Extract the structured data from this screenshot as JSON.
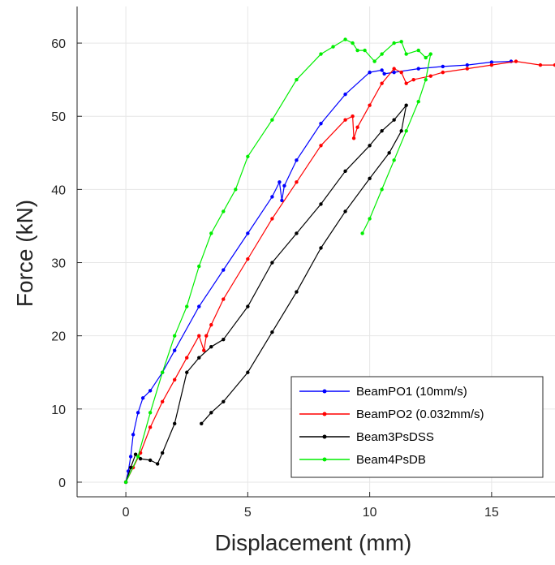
{
  "chart_data": {
    "type": "line",
    "title": "",
    "xlabel": "Displacement (mm)",
    "ylabel": "Force (kN)",
    "xlim": [
      -2,
      17.6
    ],
    "ylim": [
      -2,
      65
    ],
    "xticks": [
      0,
      5,
      10,
      15
    ],
    "yticks": [
      0,
      10,
      20,
      30,
      40,
      50,
      60
    ],
    "grid": true,
    "legend_position": "bottom-right",
    "series": [
      {
        "name": "BeamPO1 (10mm/s)",
        "color": "#0000ff",
        "x": [
          0,
          0.1,
          0.2,
          0.3,
          0.5,
          0.7,
          1.0,
          1.5,
          2.0,
          3.0,
          4.0,
          5.0,
          6.0,
          6.3,
          6.4,
          6.5,
          7.0,
          8.0,
          9.0,
          10.0,
          10.5,
          10.6,
          11.0,
          12.0,
          13.0,
          14.0,
          15.0,
          15.8
        ],
        "y": [
          0,
          1.5,
          3.5,
          6.5,
          9.5,
          11.5,
          12.5,
          15,
          18,
          24,
          29,
          34,
          39,
          41,
          38.5,
          40.5,
          44,
          49,
          53,
          56,
          56.3,
          55.8,
          56,
          56.5,
          56.8,
          57,
          57.4,
          57.5
        ]
      },
      {
        "name": "BeamPO2 (0.032mm/s)",
        "color": "#ff0000",
        "x": [
          0,
          0.3,
          0.6,
          1.0,
          1.5,
          2.0,
          2.5,
          3.0,
          3.2,
          3.3,
          3.5,
          4.0,
          5.0,
          6.0,
          7.0,
          8.0,
          9.0,
          9.3,
          9.35,
          9.5,
          10.0,
          10.5,
          11.0,
          11.3,
          11.5,
          11.8,
          12.5,
          13.0,
          14.0,
          15.0,
          16.0,
          17.0,
          17.6
        ],
        "y": [
          0,
          2,
          4,
          7.5,
          11,
          14,
          17,
          20,
          18,
          20,
          21.5,
          25,
          30.5,
          36,
          41,
          46,
          49.5,
          50,
          47,
          48.5,
          51.5,
          54.5,
          56.5,
          56,
          54.5,
          55,
          55.5,
          56,
          56.5,
          57,
          57.5,
          57,
          57
        ]
      },
      {
        "name": "Beam3PsDSS",
        "color": "#000000",
        "x": [
          0,
          0.2,
          0.4,
          0.6,
          1.0,
          1.3,
          1.5,
          2.0,
          2.5,
          3.0,
          3.5,
          4.0,
          5.0,
          6.0,
          7.0,
          8.0,
          9.0,
          10.0,
          10.5,
          11.0,
          11.5,
          11.3,
          10.8,
          10.0,
          9.0,
          8.0,
          7.0,
          6.0,
          5.0,
          4.0,
          3.5,
          3.1
        ],
        "y": [
          0,
          2,
          3.8,
          3.2,
          3,
          2.5,
          4,
          8,
          15,
          17,
          18.5,
          19.5,
          24,
          30,
          34,
          38,
          42.5,
          46,
          48,
          49.5,
          51.5,
          48,
          45,
          41.5,
          37,
          32,
          26,
          20.5,
          15,
          11,
          9.5,
          8
        ]
      },
      {
        "name": "Beam4PsDB",
        "color": "#00ee00",
        "x": [
          0,
          0.5,
          1.0,
          1.5,
          2.0,
          2.5,
          3.0,
          3.5,
          4.0,
          4.5,
          5.0,
          6.0,
          7.0,
          8.0,
          8.5,
          9.0,
          9.3,
          9.5,
          9.8,
          10.2,
          10.5,
          11.0,
          11.3,
          11.5,
          12.0,
          12.3,
          12.5,
          12.3,
          12.0,
          11.5,
          11.0,
          10.5,
          10.0,
          9.7
        ],
        "y": [
          0,
          3.5,
          9.5,
          15,
          20,
          24,
          29.5,
          34,
          37,
          40,
          44.5,
          49.5,
          55,
          58.5,
          59.5,
          60.5,
          60,
          59,
          59,
          57.5,
          58.5,
          60,
          60.2,
          58.5,
          59,
          58,
          58.5,
          55,
          52,
          48,
          44,
          40,
          36,
          34
        ]
      }
    ]
  }
}
